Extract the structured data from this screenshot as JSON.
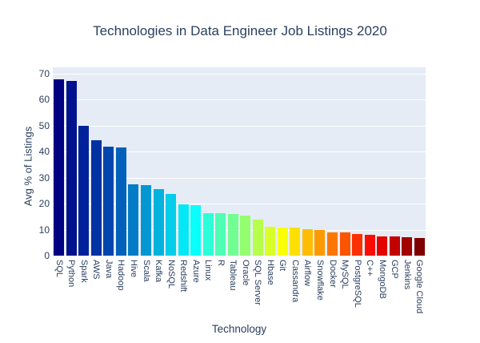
{
  "chart_data": {
    "type": "bar",
    "title": "Technologies in Data Engineer Job Listings 2020",
    "xlabel": "Technology",
    "ylabel": "Avg % of Listings",
    "ylim": [
      0,
      72
    ],
    "yticks": [
      0,
      10,
      20,
      30,
      40,
      50,
      60,
      70
    ],
    "grid": true,
    "legend": "none",
    "plot_bg": "#E5ECF6",
    "grid_color": "#FFFFFF",
    "text_color": "#2A3F5F",
    "categories": [
      "SQL",
      "Python",
      "Spark",
      "AWS",
      "Java",
      "Hadoop",
      "Hive",
      "Scala",
      "Kafka",
      "NoSQL",
      "Redshift",
      "Azure",
      "Linux",
      "R",
      "Tableau",
      "Oracle",
      "SQL Server",
      "Hbase",
      "Git",
      "Cassandra",
      "Airflow",
      "Snowflake",
      "Docker",
      "MySQL",
      "PostgreSQL",
      "C++",
      "MongoDB",
      "GCP",
      "Jenkins",
      "Google Cloud"
    ],
    "values": [
      67.8,
      67.2,
      49.9,
      44.3,
      41.7,
      41.4,
      27.4,
      27.0,
      25.6,
      23.7,
      19.8,
      19.4,
      16.4,
      16.2,
      16.0,
      15.3,
      14.0,
      11.2,
      10.9,
      10.8,
      10.3,
      9.8,
      9.0,
      8.8,
      8.3,
      8.1,
      7.5,
      7.4,
      7.1,
      6.7
    ],
    "bar_colors": [
      "#000083",
      "#00118E",
      "#002199",
      "#0032A3",
      "#0046AE",
      "#0161BA",
      "#027CC6",
      "#0297D2",
      "#03B2DD",
      "#04CDE9",
      "#04E7F5",
      "#09FFFB",
      "#2CFFD7",
      "#4EFFB4",
      "#71FF91",
      "#93FF6E",
      "#B6FF4B",
      "#D8FF28",
      "#FBFF04",
      "#FEE000",
      "#FEBD00",
      "#FD9A00",
      "#FC7700",
      "#FC5400",
      "#FB3000",
      "#FA0D00",
      "#E50000",
      "#C30000",
      "#A20000",
      "#800000"
    ]
  }
}
